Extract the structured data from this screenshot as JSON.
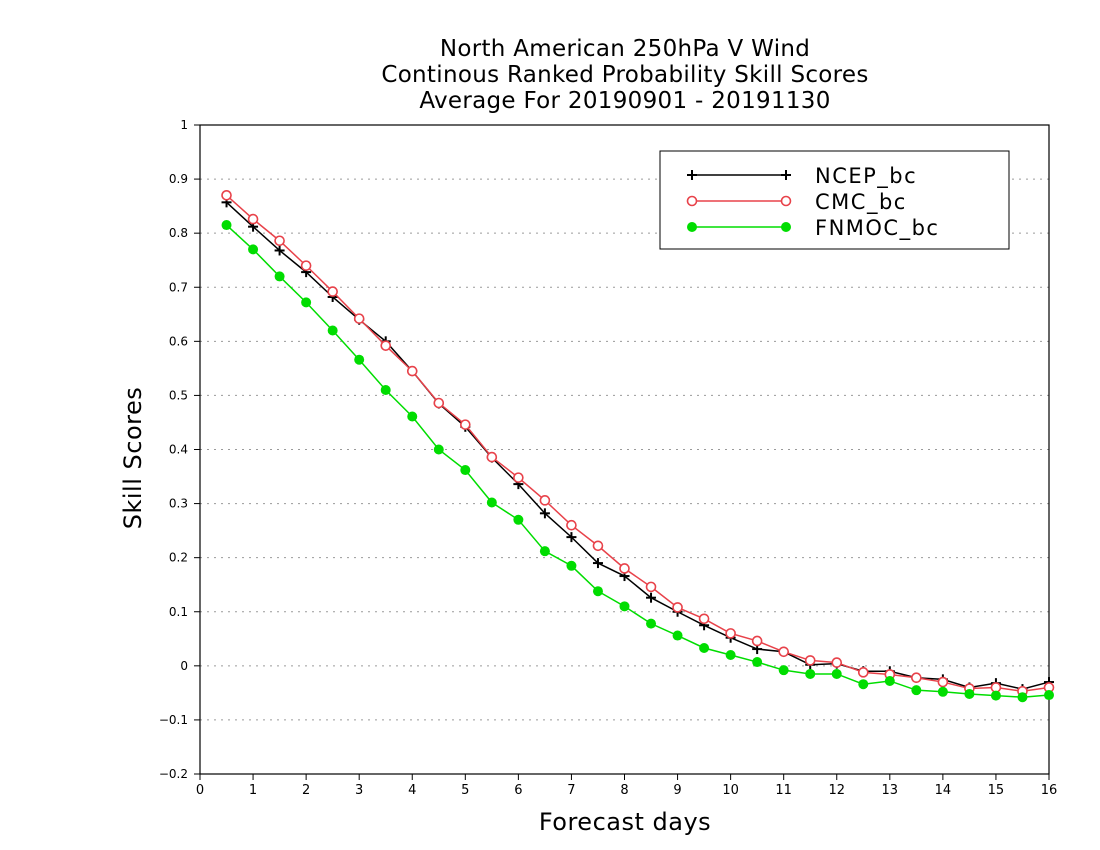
{
  "chart_data": {
    "type": "line",
    "title_lines": [
      "North American 250hPa V Wind",
      "Continous Ranked Probability Skill Scores",
      "Average For 20190901 - 20191130"
    ],
    "xlabel": "Forecast days",
    "ylabel": "Skill Scores",
    "xlim": [
      0,
      16
    ],
    "ylim": [
      -0.2,
      1
    ],
    "x_ticks": [
      "0",
      "1",
      "2",
      "3",
      "4",
      "5",
      "6",
      "7",
      "8",
      "9",
      "10",
      "11",
      "12",
      "13",
      "14",
      "15",
      "16"
    ],
    "y_ticks": [
      "1",
      "0.9",
      "0.8",
      "0.7",
      "0.6",
      "0.5",
      "0.4",
      "0.3",
      "0.2",
      "0.1",
      "0",
      "−0.1",
      "−0.2"
    ],
    "grid": "horizontal dotted",
    "legend_position": "top-right",
    "x": [
      0.5,
      1,
      1.5,
      2,
      2.5,
      3,
      3.5,
      4,
      4.5,
      5,
      5.5,
      6,
      6.5,
      7,
      7.5,
      8,
      8.5,
      9,
      9.5,
      10,
      10.5,
      11,
      11.5,
      12,
      12.5,
      13,
      13.5,
      14,
      14.5,
      15,
      15.5,
      16
    ],
    "series": [
      {
        "name": "NCEP_bc",
        "color": "#000000",
        "marker": "plus",
        "values": [
          0.857,
          0.812,
          0.768,
          0.728,
          0.682,
          0.64,
          0.6,
          0.545,
          0.485,
          0.442,
          0.385,
          0.336,
          0.282,
          0.238,
          0.19,
          0.166,
          0.126,
          0.1,
          0.075,
          0.052,
          0.031,
          0.026,
          0.002,
          0.004,
          -0.01,
          -0.01,
          -0.022,
          -0.025,
          -0.04,
          -0.032,
          -0.043,
          -0.03
        ]
      },
      {
        "name": "CMC_bc",
        "color": "#e8424a",
        "marker": "open-circle",
        "values": [
          0.87,
          0.826,
          0.786,
          0.74,
          0.692,
          0.642,
          0.592,
          0.545,
          0.486,
          0.446,
          0.386,
          0.348,
          0.306,
          0.26,
          0.222,
          0.18,
          0.146,
          0.108,
          0.087,
          0.06,
          0.046,
          0.026,
          0.01,
          0.006,
          -0.012,
          -0.016,
          -0.022,
          -0.03,
          -0.042,
          -0.04,
          -0.047,
          -0.04
        ]
      },
      {
        "name": "FNMOC_bc",
        "color": "#00dd00",
        "marker": "filled-circle",
        "values": [
          0.815,
          0.77,
          0.72,
          0.672,
          0.62,
          0.566,
          0.51,
          0.461,
          0.4,
          0.362,
          0.302,
          0.27,
          0.212,
          0.185,
          0.138,
          0.11,
          0.078,
          0.056,
          0.033,
          0.02,
          0.007,
          -0.008,
          -0.015,
          -0.015,
          -0.034,
          -0.028,
          -0.045,
          -0.048,
          -0.052,
          -0.055,
          -0.058,
          -0.054
        ]
      }
    ]
  }
}
